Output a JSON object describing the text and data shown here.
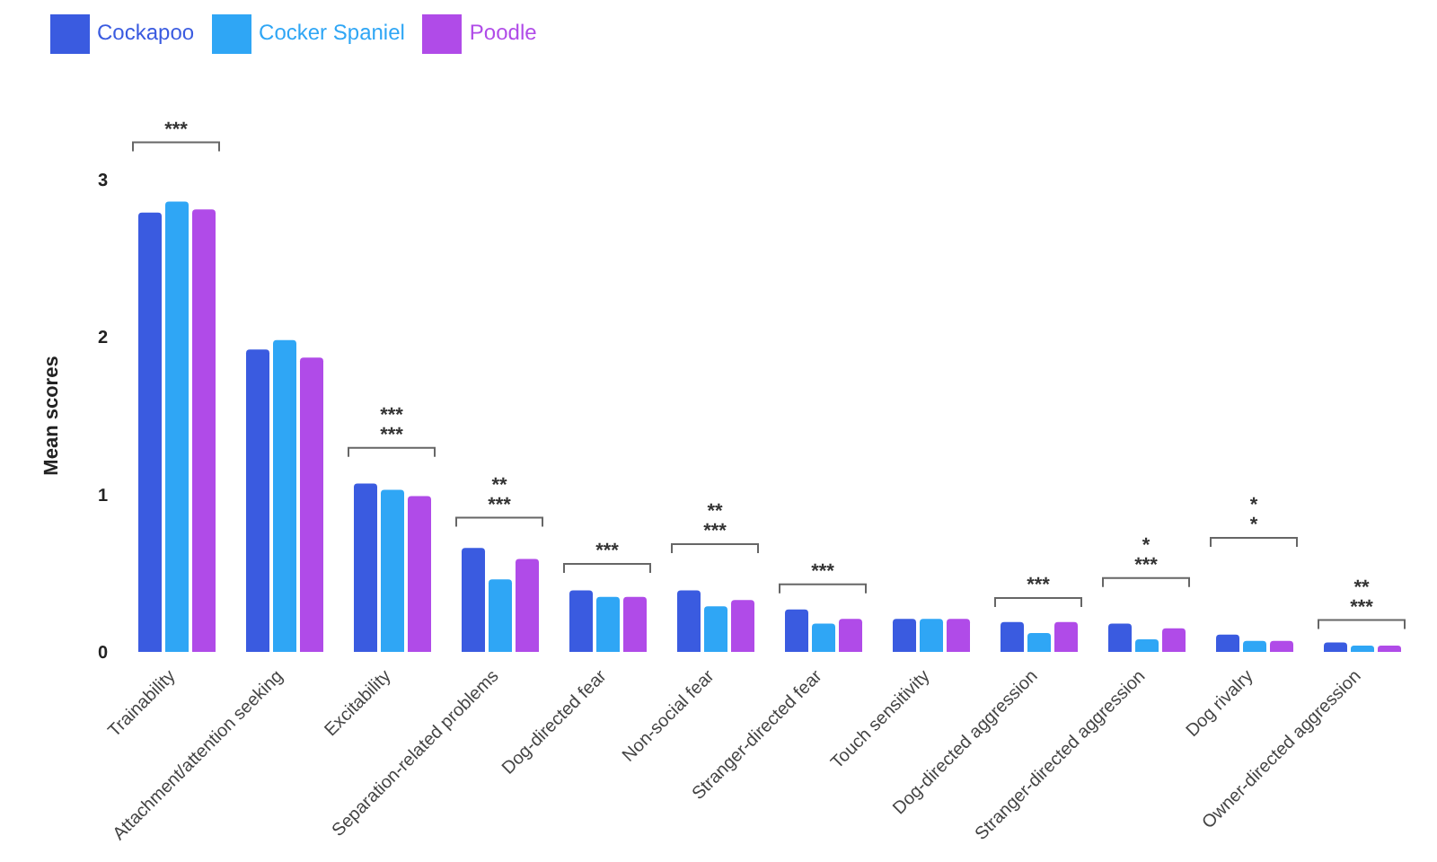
{
  "chart_data": {
    "type": "bar",
    "ylabel": "Mean scores",
    "categories": [
      "Trainability",
      "Attachment/attention seeking",
      "Excitability",
      "Separation-related problems",
      "Dog-directed fear",
      "Non-social fear",
      "Stranger-directed fear",
      "Touch sensitivity",
      "Dog-directed aggression",
      "Stranger-directed aggression",
      "Dog rivalry",
      "Owner-directed aggression"
    ],
    "series": [
      {
        "name": "Cockapoo",
        "color": "#3a5be0",
        "values": [
          2.79,
          1.92,
          1.07,
          0.66,
          0.39,
          0.39,
          0.27,
          0.21,
          0.19,
          0.18,
          0.11,
          0.06
        ]
      },
      {
        "name": "Cocker Spaniel",
        "color": "#2fa6f5",
        "values": [
          2.86,
          1.98,
          1.03,
          0.46,
          0.35,
          0.29,
          0.18,
          0.21,
          0.12,
          0.08,
          0.07,
          0.04
        ]
      },
      {
        "name": "Poodle",
        "color": "#b04be8",
        "values": [
          2.81,
          1.87,
          0.99,
          0.59,
          0.35,
          0.33,
          0.21,
          0.21,
          0.19,
          0.15,
          0.07,
          0.04
        ]
      }
    ],
    "ylim": [
      0,
      3
    ],
    "yticks": [
      0,
      1,
      2,
      3
    ],
    "grid": false,
    "legend": "top left",
    "annotations": [
      "***",
      "***",
      "***",
      "**",
      "***",
      "***",
      "**",
      "***",
      "***",
      "***",
      "*",
      "***",
      "*",
      "*",
      "**",
      "***"
    ]
  }
}
